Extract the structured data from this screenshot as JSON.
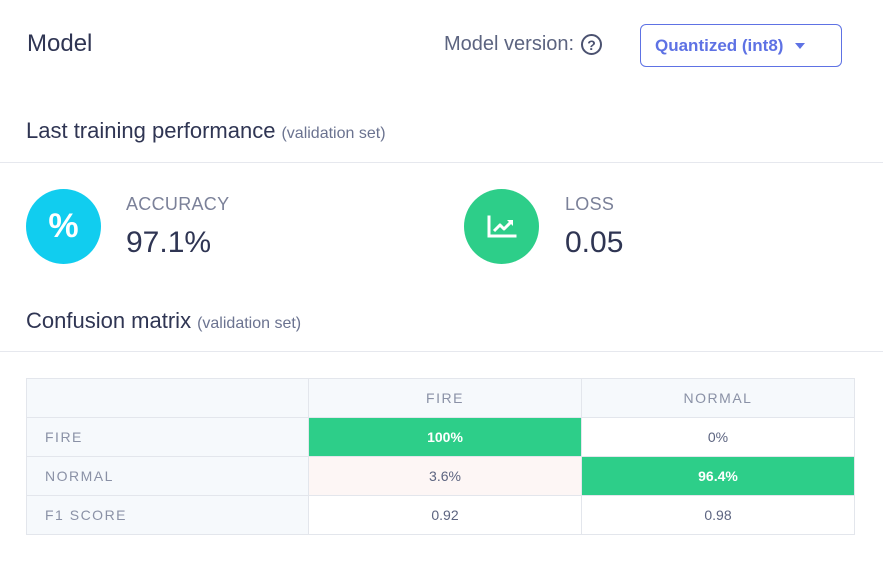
{
  "header": {
    "title": "Model",
    "version_label": "Model version:",
    "help_icon": "question-circle-icon",
    "version_selected": "Quantized (int8)"
  },
  "performance": {
    "title": "Last training performance",
    "subtitle": "(validation set)",
    "accuracy": {
      "label": "ACCURACY",
      "value": "97.1%",
      "icon": "percent-icon",
      "color": "#11cdef"
    },
    "loss": {
      "label": "LOSS",
      "value": "0.05",
      "icon": "trending-chart-icon",
      "color": "#2dce89"
    }
  },
  "confusion": {
    "title": "Confusion matrix",
    "subtitle": "(validation set)",
    "columns": [
      "FIRE",
      "NORMAL"
    ],
    "rows": [
      {
        "label": "FIRE",
        "cells": [
          "100%",
          "0%"
        ]
      },
      {
        "label": "NORMAL",
        "cells": [
          "3.6%",
          "96.4%"
        ]
      },
      {
        "label": "F1 SCORE",
        "cells": [
          "0.92",
          "0.98"
        ]
      }
    ],
    "highlight_color": "#2dce89"
  }
}
